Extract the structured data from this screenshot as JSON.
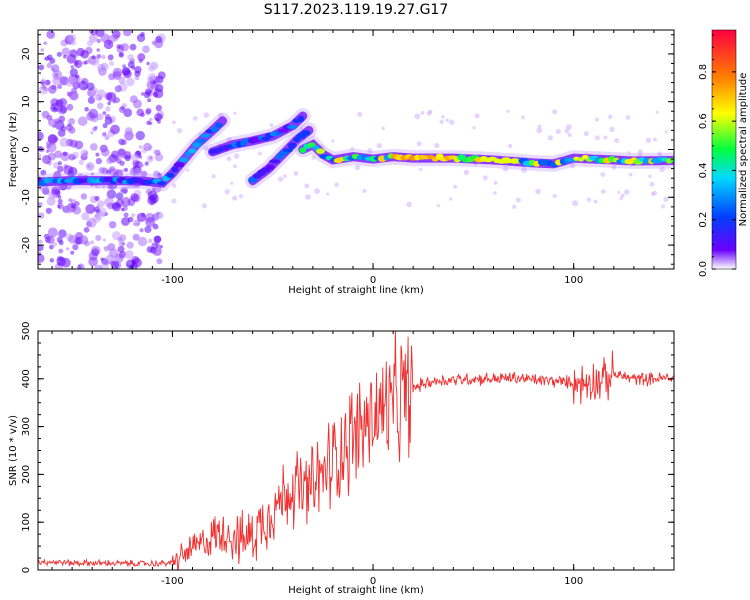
{
  "figure": {
    "title": "S117.2023.119.19.27.G17"
  },
  "chart_data": [
    {
      "type": "heatmap",
      "xlabel": "Height of straight line (km)",
      "ylabel": "Frequency (Hz)",
      "xlim": [
        -167,
        150
      ],
      "ylim": [
        -25,
        25
      ],
      "xticks": [
        -100,
        0,
        100
      ],
      "yticks": [
        -20,
        -10,
        0,
        10,
        20
      ],
      "colorbar": {
        "label": "Normalized spectral amplitude",
        "range": [
          0,
          0.97
        ],
        "ticks": [
          0.0,
          0.2,
          0.4,
          0.6,
          0.8
        ],
        "colormap": [
          "#ffffff",
          "#6a00ff",
          "#0040ff",
          "#00d8ff",
          "#00ff40",
          "#ffff00",
          "#ff8000",
          "#ff0040"
        ]
      },
      "ridges": [
        {
          "x": [
            -167,
            -150,
            -130,
            -115,
            -105,
            -100,
            -95,
            -88,
            -80,
            -75
          ],
          "y": [
            -6.8,
            -6.5,
            -6.5,
            -6.6,
            -7,
            -5,
            -2.5,
            1,
            4,
            6
          ],
          "amplitude": 0.35
        },
        {
          "x": [
            -80,
            -70,
            -60,
            -50,
            -40,
            -35
          ],
          "y": [
            -0.5,
            1,
            1.8,
            2.8,
            5,
            7
          ],
          "amplitude": 0.3
        },
        {
          "x": [
            -60,
            -52,
            -45,
            -38,
            -32
          ],
          "y": [
            -6.5,
            -4,
            -1,
            2,
            4
          ],
          "amplitude": 0.3
        },
        {
          "x": [
            -35,
            -30,
            -25,
            -20,
            -10,
            0,
            10,
            20,
            40,
            60,
            80,
            90,
            100,
            110,
            130,
            150
          ],
          "y": [
            0,
            1,
            -1,
            -2.2,
            -1.5,
            -2,
            -1.5,
            -1.8,
            -1.8,
            -2.2,
            -2.8,
            -3,
            -1.8,
            -2,
            -2.4,
            -2.3
          ],
          "amplitude": 0.65
        }
      ]
    },
    {
      "type": "line",
      "xlabel": "Height of straight line (km)",
      "ylabel": "SNR (10 * v/v)",
      "xlim": [
        -167,
        150
      ],
      "ylim": [
        0,
        500
      ],
      "xticks": [
        -100,
        0,
        100
      ],
      "yticks": [
        0,
        100,
        200,
        300,
        400,
        500
      ],
      "color": "#f03030",
      "series": [
        {
          "x": [
            -167,
            -150,
            -130,
            -110,
            -100,
            -95,
            -90,
            -85,
            -80,
            -75,
            -70,
            -65,
            -60,
            -55,
            -50,
            -45,
            -40,
            -35,
            -30,
            -25,
            -20,
            -15,
            -10,
            -5,
            0,
            5,
            10,
            15,
            20,
            25,
            30,
            40,
            50,
            60,
            70,
            80,
            90,
            100,
            105,
            110,
            115,
            120,
            125,
            130,
            140,
            150
          ],
          "y": [
            18,
            15,
            14,
            13,
            15,
            30,
            45,
            55,
            70,
            80,
            75,
            60,
            75,
            100,
            130,
            150,
            180,
            160,
            170,
            200,
            230,
            260,
            280,
            300,
            320,
            335,
            340,
            360,
            380,
            390,
            395,
            398,
            400,
            400,
            402,
            398,
            395,
            392,
            390,
            400,
            395,
            410,
            405,
            400,
            400,
            402
          ]
        }
      ]
    }
  ]
}
